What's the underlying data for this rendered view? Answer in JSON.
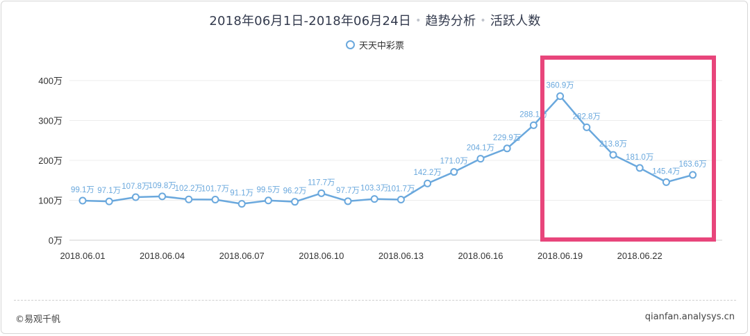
{
  "title": {
    "date_range": "2018年06月1日-2018年06月24日",
    "section": "趋势分析",
    "metric": "活跃人数"
  },
  "footer": {
    "copyright": "©易观千帆",
    "site": "qianfan.analysys.cn"
  },
  "colors": {
    "line": "#6aa8dd",
    "label": "#6aa8dd",
    "highlight": "#e8457b",
    "grid": "#ececec"
  },
  "chart_data": {
    "type": "line",
    "x": [
      "2018.06.01",
      "2018.06.02",
      "2018.06.03",
      "2018.06.04",
      "2018.06.05",
      "2018.06.06",
      "2018.06.07",
      "2018.06.08",
      "2018.06.09",
      "2018.06.10",
      "2018.06.11",
      "2018.06.12",
      "2018.06.13",
      "2018.06.14",
      "2018.06.15",
      "2018.06.16",
      "2018.06.17",
      "2018.06.18",
      "2018.06.19",
      "2018.06.20",
      "2018.06.21",
      "2018.06.22",
      "2018.06.23",
      "2018.06.24"
    ],
    "x_tick_labels": [
      "2018.06.01",
      "2018.06.04",
      "2018.06.07",
      "2018.06.10",
      "2018.06.13",
      "2018.06.16",
      "2018.06.19",
      "2018.06.22"
    ],
    "series": [
      {
        "name": "天天中彩票",
        "values": [
          99.1,
          97.1,
          107.8,
          109.8,
          102.2,
          101.7,
          91.1,
          99.5,
          96.2,
          117.7,
          97.7,
          103.3,
          101.7,
          142.2,
          171.0,
          204.1,
          229.9,
          288.1,
          360.9,
          282.8,
          213.8,
          181.0,
          145.4,
          163.6
        ],
        "data_labels": [
          "99.1万",
          "97.1万",
          "107.8万",
          "109.8万",
          "102.2万",
          "101.7万",
          "91.1万",
          "99.5万",
          "96.2万",
          "117.7万",
          "97.7万",
          "103.3万",
          "101.7万",
          "142.2万",
          "171.0万",
          "204.1万",
          "229.9万",
          "288.1万",
          "360.9万",
          "282.8万",
          "213.8万",
          "181.0万",
          "145.4万",
          "163.6万"
        ]
      }
    ],
    "y_ticks": [
      0,
      100,
      200,
      300,
      400
    ],
    "y_tick_labels": [
      "0万",
      "100万",
      "200万",
      "300万",
      "400万"
    ],
    "ylim": [
      0,
      400
    ],
    "unit": "万",
    "grid": true,
    "legend_position": "top-center"
  }
}
